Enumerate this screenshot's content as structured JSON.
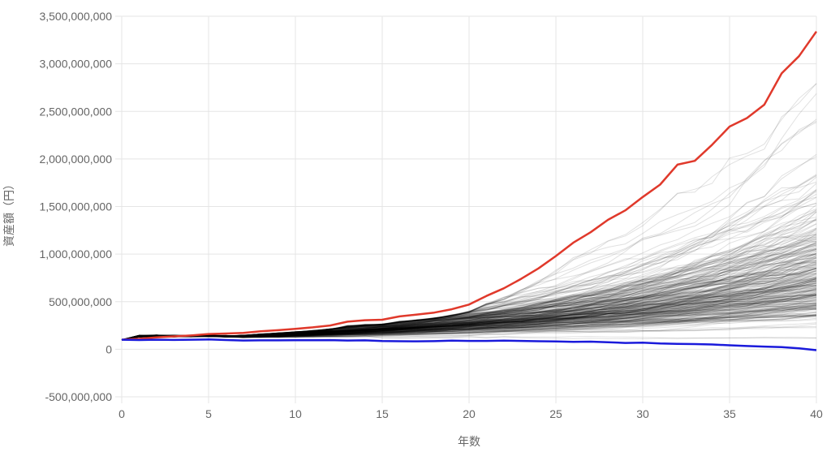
{
  "chart_data": {
    "type": "line",
    "title": "",
    "xlabel": "年数",
    "ylabel": "資産額（円）",
    "xlim": [
      0,
      40
    ],
    "ylim": [
      -500000000,
      3500000000
    ],
    "x_ticks": [
      0,
      5,
      10,
      15,
      20,
      25,
      30,
      35,
      40
    ],
    "y_ticks": [
      -500000000,
      0,
      500000000,
      1000000000,
      1500000000,
      2000000000,
      2500000000,
      3000000000,
      3500000000
    ],
    "y_tick_labels": [
      "-500,000,000",
      "0",
      "500,000,000",
      "1,000,000,000",
      "1,500,000,000",
      "2,000,000,000",
      "2,500,000,000",
      "3,000,000,000",
      "3,500,000,000"
    ],
    "x_tick_labels": [
      "0",
      "5",
      "10",
      "15",
      "20",
      "25",
      "30",
      "35",
      "40"
    ],
    "grid": true,
    "legend": "none",
    "colors": {
      "max_series": "#e0392b",
      "min_series": "#1a1adb",
      "simulation_paths": "#000000",
      "grid": "#e5e5e5",
      "tick_text": "#666666"
    },
    "simulation_paths_count": 300,
    "series": [
      {
        "role": "max",
        "x": [
          0,
          1,
          2,
          3,
          4,
          5,
          6,
          7,
          8,
          9,
          10,
          11,
          12,
          13,
          14,
          15,
          16,
          17,
          18,
          19,
          20,
          21,
          22,
          23,
          24,
          25,
          26,
          27,
          28,
          29,
          30,
          31,
          32,
          33,
          34,
          35,
          36,
          37,
          38,
          39,
          40
        ],
        "values": [
          100000000,
          110000000,
          125000000,
          135000000,
          145000000,
          160000000,
          165000000,
          172000000,
          188000000,
          200000000,
          215000000,
          230000000,
          250000000,
          290000000,
          305000000,
          310000000,
          345000000,
          365000000,
          385000000,
          420000000,
          470000000,
          560000000,
          640000000,
          740000000,
          850000000,
          980000000,
          1120000000,
          1230000000,
          1360000000,
          1460000000,
          1600000000,
          1730000000,
          1940000000,
          1980000000,
          2150000000,
          2340000000,
          2430000000,
          2570000000,
          2900000000,
          3080000000,
          3340000000
        ]
      },
      {
        "role": "min",
        "x": [
          0,
          1,
          2,
          3,
          4,
          5,
          6,
          7,
          8,
          9,
          10,
          11,
          12,
          13,
          14,
          15,
          16,
          17,
          18,
          19,
          20,
          21,
          22,
          23,
          24,
          25,
          26,
          27,
          28,
          29,
          30,
          31,
          32,
          33,
          34,
          35,
          36,
          37,
          38,
          39,
          40
        ],
        "values": [
          100000000,
          97000000,
          100000000,
          98000000,
          100000000,
          103000000,
          97000000,
          92000000,
          94000000,
          94000000,
          95000000,
          95000000,
          96000000,
          92000000,
          94000000,
          86000000,
          84000000,
          83000000,
          85000000,
          90000000,
          88000000,
          88000000,
          91000000,
          88000000,
          84000000,
          82000000,
          78000000,
          80000000,
          74000000,
          66000000,
          70000000,
          60000000,
          57000000,
          54000000,
          50000000,
          42000000,
          34000000,
          28000000,
          22000000,
          10000000,
          -10000000
        ]
      }
    ]
  }
}
